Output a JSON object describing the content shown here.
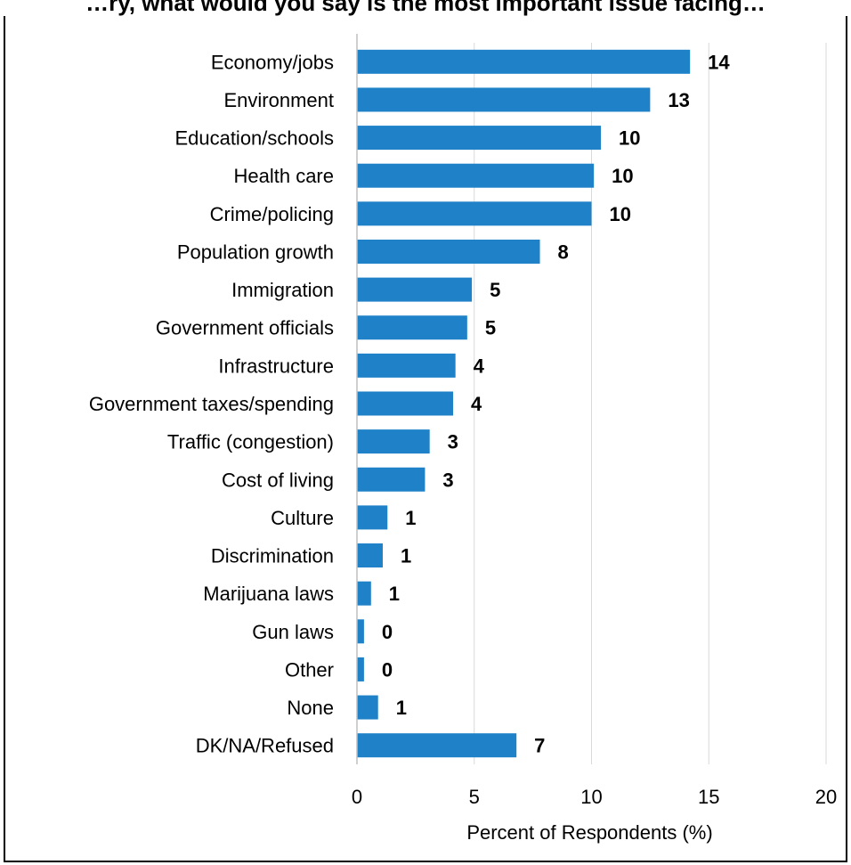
{
  "chart_data": {
    "type": "bar",
    "orientation": "horizontal",
    "title": "…ry, what would you say is the most important issue facing…",
    "xlabel": "Percent of Respondents (%)",
    "ylabel": "",
    "xlim": [
      0,
      20
    ],
    "x_ticks": [
      "0",
      "5",
      "10",
      "15",
      "20"
    ],
    "grid": true,
    "bar_color": "#1f82c8",
    "categories": [
      "Economy/jobs",
      "Environment",
      "Education/schools",
      "Health care",
      "Crime/policing",
      "Population growth",
      "Immigration",
      "Government officials",
      "Infrastructure",
      "Government taxes/spending",
      "Traffic (congestion)",
      "Cost of living",
      "Culture",
      "Discrimination",
      "Marijuana laws",
      "Gun laws",
      "Other",
      "None",
      "DK/NA/Refused"
    ],
    "values": [
      14.2,
      12.5,
      10.4,
      10.1,
      10.0,
      7.8,
      4.9,
      4.7,
      4.2,
      4.1,
      3.1,
      2.9,
      1.3,
      1.1,
      0.6,
      0.3,
      0.3,
      0.9,
      6.8
    ],
    "labels": [
      "14",
      "13",
      "10",
      "10",
      "10",
      "8",
      "5",
      "5",
      "4",
      "4",
      "3",
      "3",
      "1",
      "1",
      "1",
      "0",
      "0",
      "1",
      "7"
    ]
  }
}
